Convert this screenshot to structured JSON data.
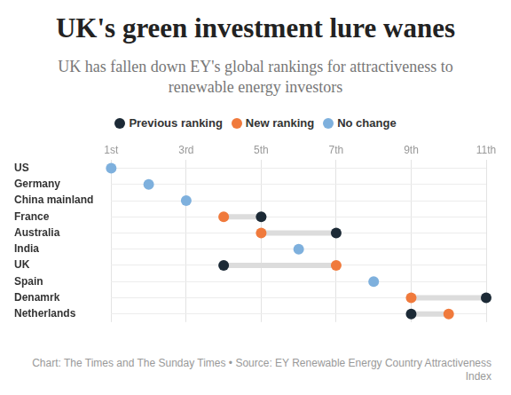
{
  "chart_data": {
    "type": "dumbbell",
    "title": "UK's green investment lure wanes",
    "subtitle": "UK has fallen down EY's global rankings for attractiveness to renewable energy investors",
    "source": "Chart: The Times and The Sunday Times • Source: EY Renewable Energy Country Attractiveness Index",
    "categories": [
      "US",
      "Germany",
      "China mainland",
      "France",
      "Australia",
      "India",
      "UK",
      "Spain",
      "Denamrk",
      "Netherlands"
    ],
    "series": [
      {
        "name": "Previous ranking",
        "color": "#1c2a36",
        "values": [
          null,
          null,
          null,
          5,
          7,
          null,
          4,
          null,
          11,
          9
        ]
      },
      {
        "name": "New ranking",
        "color": "#f07a3c",
        "values": [
          null,
          null,
          null,
          4,
          5,
          null,
          7,
          null,
          9,
          10
        ]
      },
      {
        "name": "No change",
        "color": "#7eb0dd",
        "values": [
          1,
          2,
          3,
          null,
          null,
          6,
          null,
          8,
          null,
          null
        ]
      }
    ],
    "xlim": [
      1,
      11
    ],
    "xticks": [
      {
        "value": 1,
        "label": "1st"
      },
      {
        "value": 3,
        "label": "3rd"
      },
      {
        "value": 5,
        "label": "5th"
      },
      {
        "value": 7,
        "label": "7th"
      },
      {
        "value": 9,
        "label": "9th"
      },
      {
        "value": 11,
        "label": "11th"
      }
    ],
    "grid": true,
    "legend": "top"
  }
}
